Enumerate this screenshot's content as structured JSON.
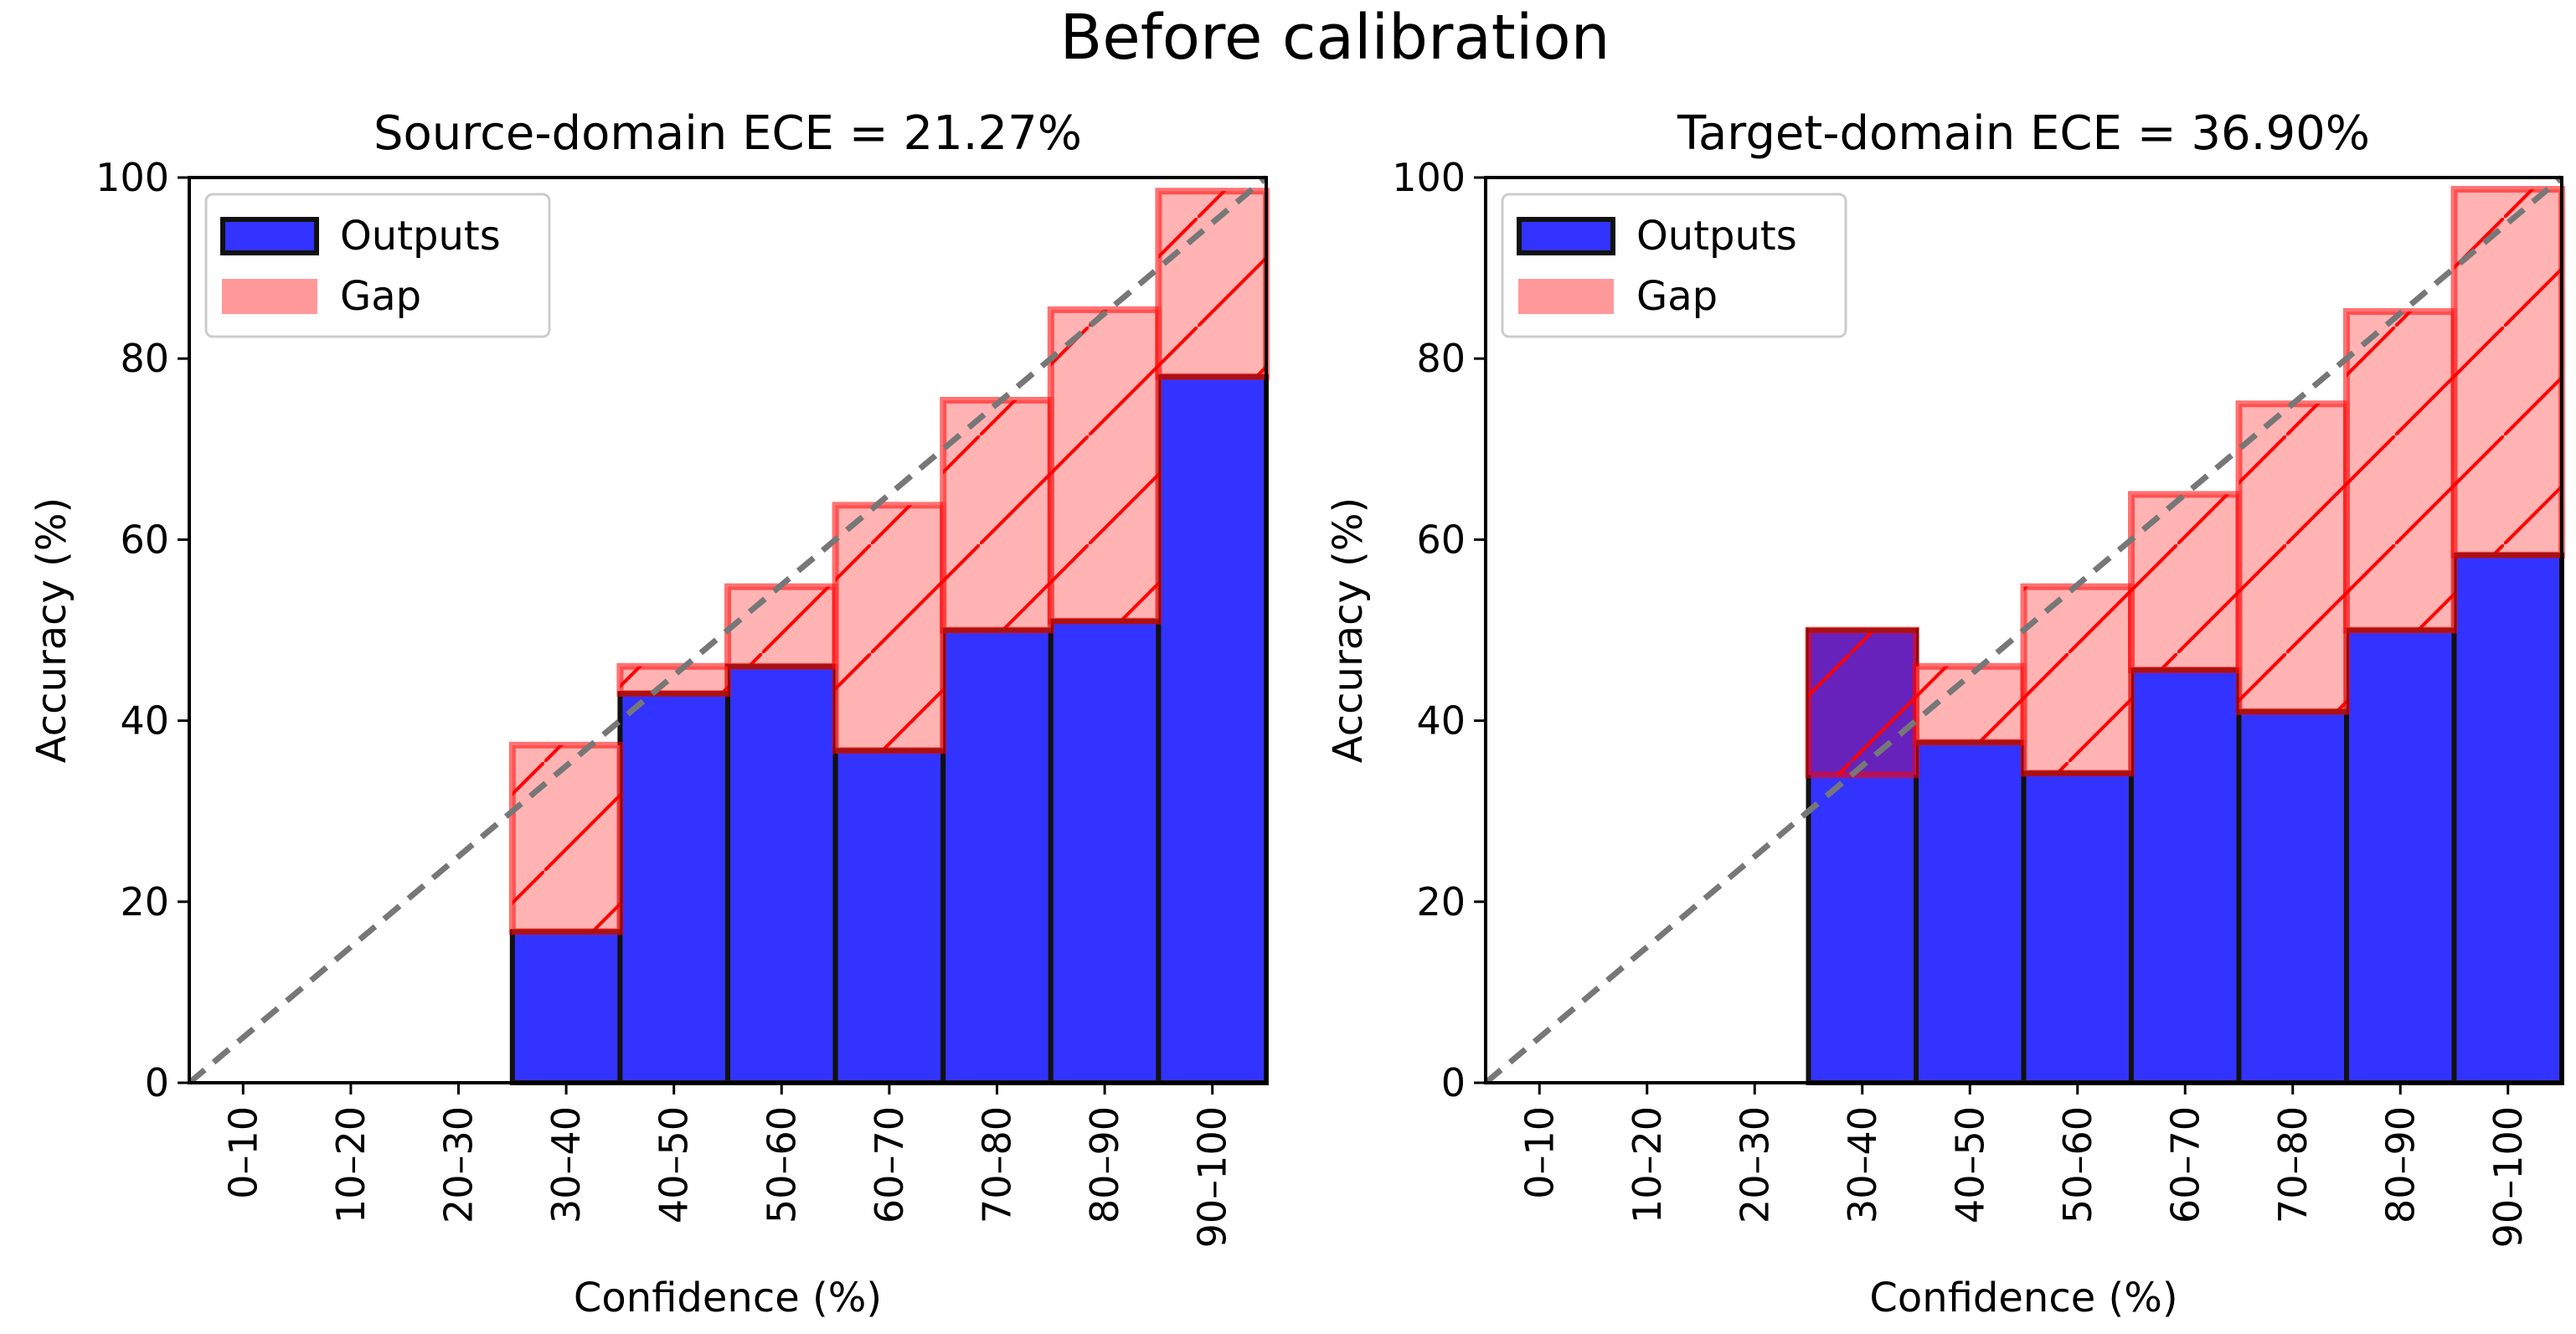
{
  "figure_title": "Before calibration",
  "colors": {
    "outputs": "#3333ff",
    "gap": "#ff9999",
    "gap_edge": "#ff0000",
    "bar_edge": "#111111",
    "diagonal": "#777777",
    "overlap": "#6622bb"
  },
  "chart_data": [
    {
      "type": "bar",
      "title": "Source-domain ECE = 21.27%",
      "xlabel": "Confidence (%)",
      "ylabel": "Accuracy (%)",
      "ylim": [
        0,
        100
      ],
      "yticks": [
        "0",
        "20",
        "40",
        "60",
        "80",
        "100"
      ],
      "categories": [
        "0–10",
        "10–20",
        "20–30",
        "30–40",
        "40–50",
        "50–60",
        "60–70",
        "70–80",
        "80–90",
        "90–100"
      ],
      "legend": {
        "position": "top-left",
        "entries": [
          "Outputs",
          "Gap"
        ]
      },
      "series": [
        {
          "name": "Outputs",
          "values": [
            null,
            null,
            null,
            16.7,
            43.0,
            46.0,
            36.7,
            50.0,
            51.0,
            78.0
          ]
        },
        {
          "name": "Gap",
          "values": [
            null,
            null,
            null,
            37.3,
            46.0,
            54.8,
            63.8,
            75.4,
            85.4,
            98.5
          ]
        }
      ]
    },
    {
      "type": "bar",
      "title": "Target-domain ECE = 36.90%",
      "xlabel": "Confidence (%)",
      "ylabel": "Accuracy (%)",
      "ylim": [
        0,
        100
      ],
      "yticks": [
        "0",
        "20",
        "40",
        "60",
        "80",
        "100"
      ],
      "categories": [
        "0–10",
        "10–20",
        "20–30",
        "30–40",
        "40–50",
        "50–60",
        "60–70",
        "70–80",
        "80–90",
        "90–100"
      ],
      "legend": {
        "position": "top-left",
        "entries": [
          "Outputs",
          "Gap"
        ]
      },
      "series": [
        {
          "name": "Outputs",
          "values": [
            null,
            null,
            null,
            50.0,
            37.6,
            34.2,
            45.6,
            41.0,
            50.0,
            58.3
          ]
        },
        {
          "name": "Gap",
          "values": [
            null,
            null,
            null,
            34.0,
            46.0,
            54.8,
            65.0,
            75.0,
            85.2,
            98.7
          ]
        }
      ]
    }
  ]
}
